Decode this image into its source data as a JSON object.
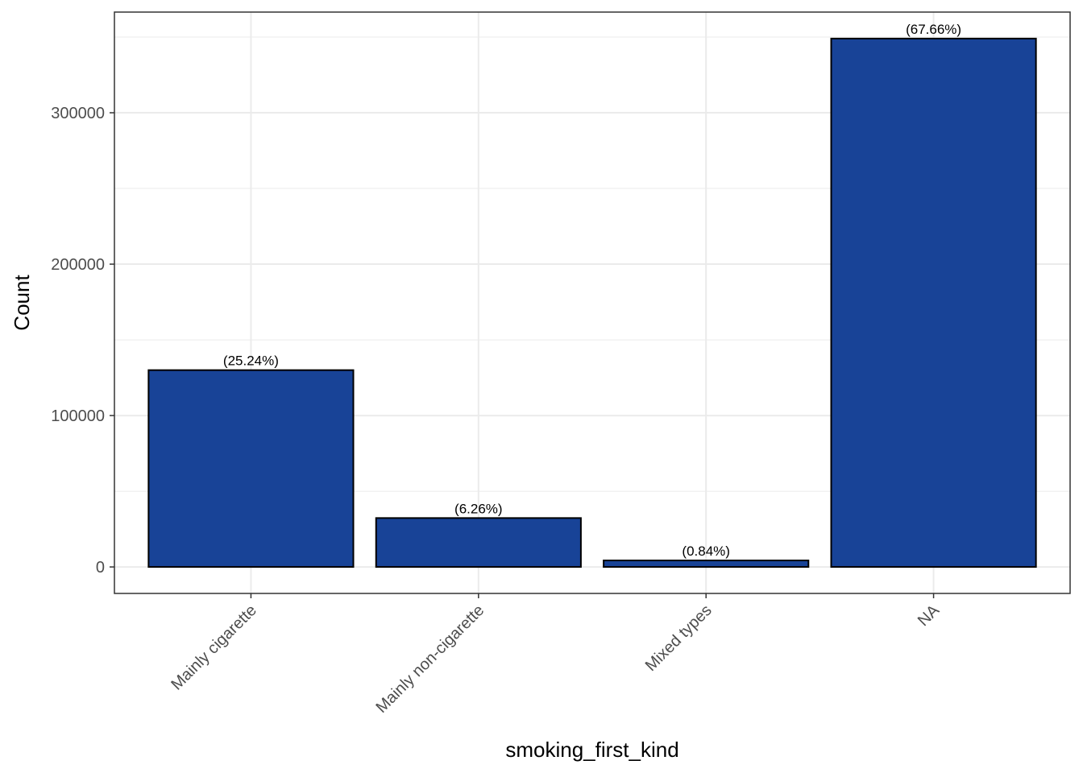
{
  "chart_data": {
    "type": "bar",
    "xlabel": "smoking_first_kind",
    "ylabel": "Count",
    "categories": [
      "Mainly cigarette",
      "Mainly non-cigarette",
      "Mixed types",
      "NA"
    ],
    "values": [
      130000,
      32300,
      4300,
      349000
    ],
    "bar_labels": [
      "(25.24%)",
      "(6.26%)",
      "(0.84%)",
      "(67.66%)"
    ],
    "y_ticks": [
      0,
      100000,
      200000,
      300000
    ],
    "y_tick_labels": [
      "0",
      "100000",
      "200000",
      "300000"
    ],
    "ylim": [
      -17500,
      366500
    ],
    "grid": true,
    "legend": "none",
    "x_tick_rotation_deg": 45,
    "colors": {
      "bar_fill": "#184397",
      "bar_stroke": "#000000",
      "grid": "#ebebeb",
      "panel_border": "#333333",
      "tick_text": "#4d4d4d"
    }
  }
}
